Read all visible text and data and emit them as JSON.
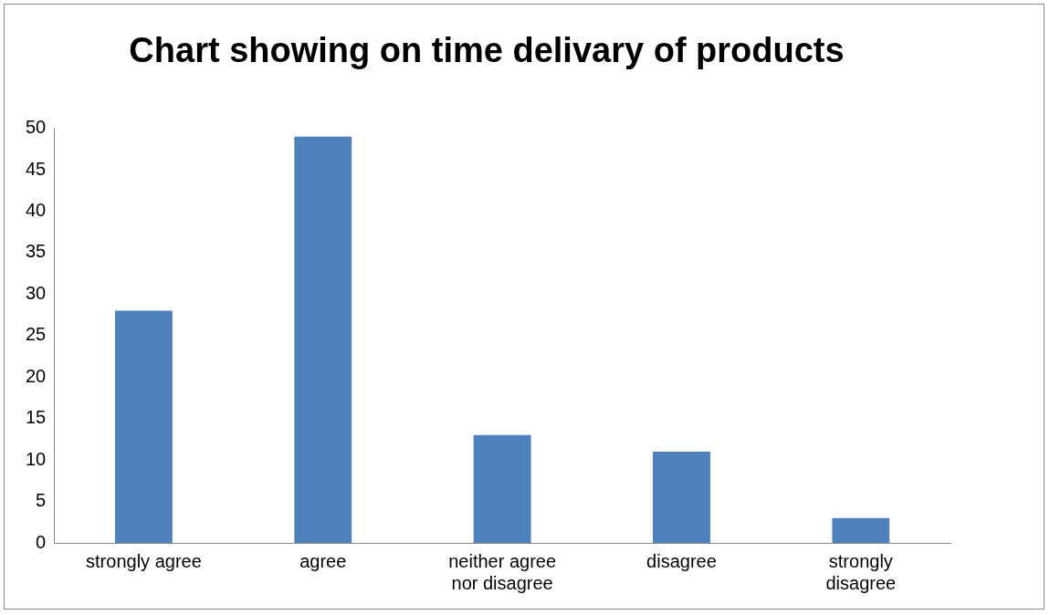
{
  "chart_data": {
    "type": "bar",
    "title": "Chart showing on time delivary of products",
    "categories": [
      "strongly agree",
      "agree",
      "neither agree nor disagree",
      "disagree",
      "strongly disagree"
    ],
    "values": [
      28,
      49,
      13,
      11,
      3
    ],
    "color": "#4f81bd",
    "ylim": [
      0,
      50
    ],
    "yticks": [
      0,
      5,
      10,
      15,
      20,
      25,
      30,
      35,
      40,
      45,
      50
    ],
    "grid": false,
    "legend": false
  }
}
